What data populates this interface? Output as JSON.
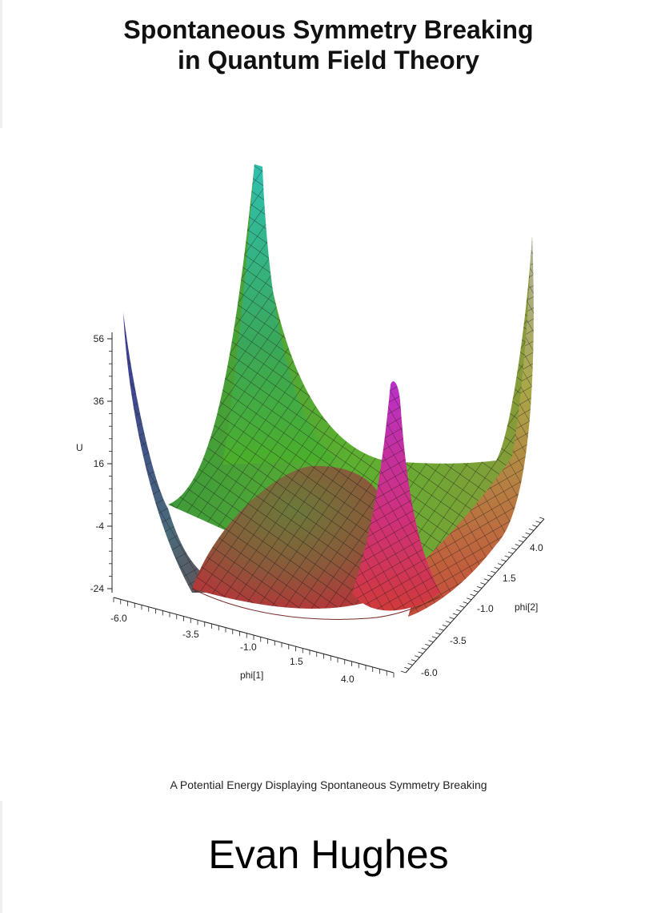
{
  "cover": {
    "title_line1": "Spontaneous Symmetry Breaking",
    "title_line2": "in Quantum Field Theory",
    "caption": "A Potential Energy Displaying Spontaneous Symmetry Breaking",
    "author": "Evan Hughes"
  },
  "figure": {
    "z_axis": {
      "label": "U",
      "ticks": [
        "56",
        "36",
        "16",
        "-4",
        "-24"
      ]
    },
    "x_axis": {
      "label": "phi[1]",
      "ticks": [
        "-6.0",
        "-3.5",
        "-1.0",
        "1.5",
        "4.0"
      ]
    },
    "y_axis": {
      "label": "phi[2]",
      "ticks": [
        "4.0",
        "1.5",
        "-1.0",
        "-3.5",
        "-6.0"
      ]
    },
    "colors": {
      "mesh": "#1a1a1a",
      "green": "#4caf2a",
      "magenta": "#cc33aa",
      "teal": "#33bba0",
      "purple": "#4a3a99"
    }
  }
}
